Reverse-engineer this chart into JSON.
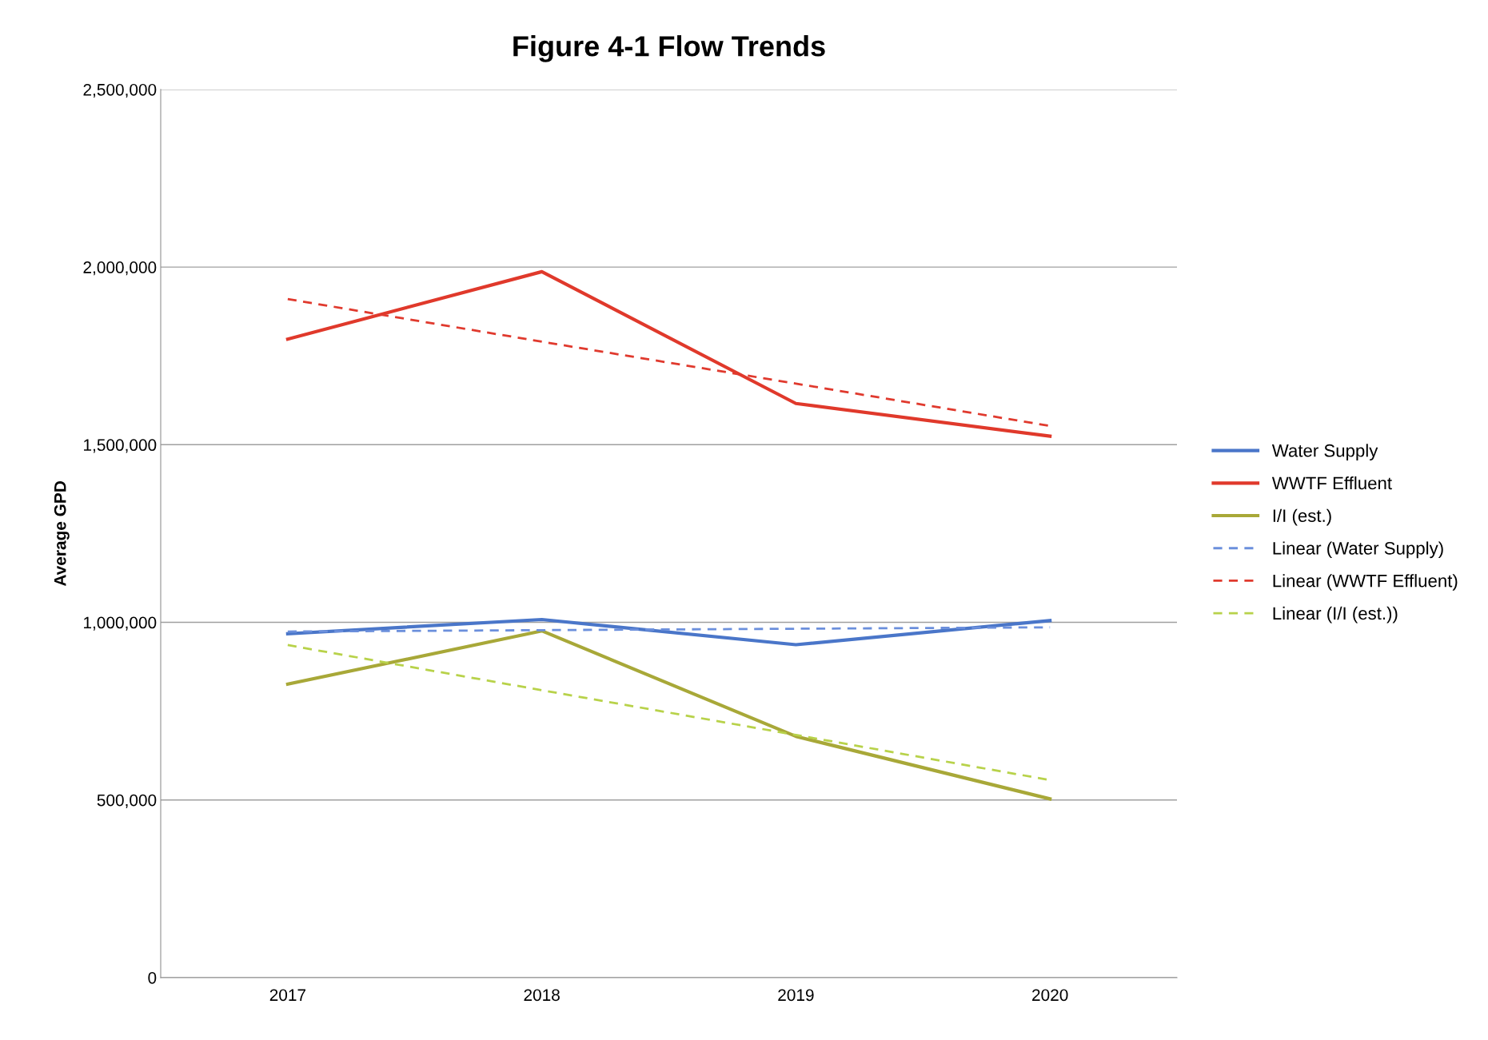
{
  "chart_data": {
    "type": "line",
    "title": "Figure 4-1 Flow Trends",
    "ylabel": "Average GPD",
    "categories": [
      "2017",
      "2018",
      "2019",
      "2020"
    ],
    "series": [
      {
        "name": "Water Supply",
        "color": "#4a76c9",
        "values": [
          968000,
          1008000,
          937000,
          1005000
        ],
        "line_style": "solid"
      },
      {
        "name": "WWTF Effluent",
        "color": "#e0392b",
        "values": [
          1797000,
          1987000,
          1616000,
          1524000
        ],
        "line_style": "solid"
      },
      {
        "name": "I/I (est.)",
        "color": "#a8a838",
        "values": [
          826000,
          976000,
          679000,
          503000
        ],
        "line_style": "solid"
      },
      {
        "name": "Linear (Water Supply)",
        "color": "#6b8fdc",
        "values": [
          974000,
          978000,
          982000,
          986000
        ],
        "line_style": "dashed"
      },
      {
        "name": "Linear (WWTF Effluent)",
        "color": "#e03a2e",
        "values": [
          1910000,
          1790000,
          1672000,
          1553000
        ],
        "line_style": "dashed"
      },
      {
        "name": "Linear (I/I (est.))",
        "color": "#b8d24a",
        "values": [
          936000,
          809000,
          683000,
          556000
        ],
        "line_style": "dashed"
      }
    ],
    "ylim": [
      0,
      2500000
    ],
    "yticks": [
      {
        "value": 0,
        "label": "0"
      },
      {
        "value": 500000,
        "label": "500,000"
      },
      {
        "value": 1000000,
        "label": "1,000,000"
      },
      {
        "value": 1500000,
        "label": "1,500,000"
      },
      {
        "value": 2000000,
        "label": "2,000,000"
      },
      {
        "value": 2500000,
        "label": "2,500,000"
      }
    ],
    "grid": "y",
    "legend": "right",
    "marker": "none"
  }
}
